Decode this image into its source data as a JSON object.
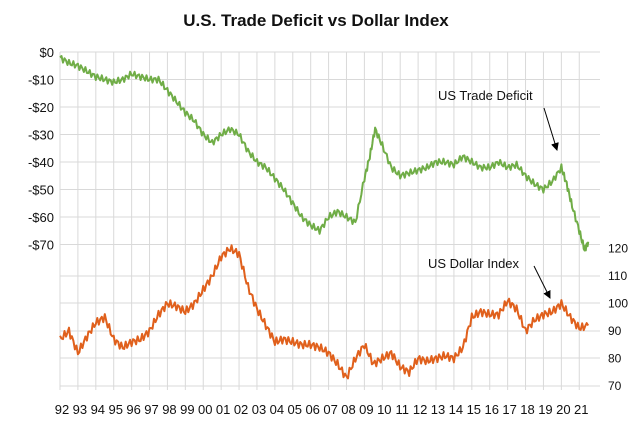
{
  "chart_data": {
    "type": "line",
    "title": "U.S. Trade Deficit vs Dollar Index",
    "grid": true,
    "x_tick_labels": [
      "92",
      "93",
      "94",
      "95",
      "96",
      "97",
      "98",
      "99",
      "00",
      "01",
      "02",
      "03",
      "04",
      "05",
      "06",
      "07",
      "08",
      "09",
      "10",
      "11",
      "12",
      "13",
      "14",
      "15",
      "16",
      "17",
      "18",
      "19",
      "20",
      "21"
    ],
    "x_range": [
      1992,
      2021.6
    ],
    "left_axis": {
      "ylim": [
        -80,
        0
      ],
      "tick_labels": [
        "$0",
        "-$10",
        "-$20",
        "-$30",
        "-$40",
        "-$50",
        "-$60",
        "-$70"
      ],
      "tick_values": [
        0,
        -10,
        -20,
        -30,
        -40,
        -50,
        -60,
        -70
      ]
    },
    "right_axis": {
      "ylim": [
        70,
        130
      ],
      "tick_labels": [
        "70",
        "80",
        "90",
        "100",
        "110",
        "120"
      ],
      "tick_values": [
        70,
        80,
        90,
        100,
        110,
        120
      ]
    },
    "annotations": [
      {
        "label": "US Trade Deficit",
        "series": 0,
        "x": 2019.7,
        "y": -42
      },
      {
        "label": "US Dollar Index",
        "series": 1,
        "x": 2019.6,
        "y": 98
      }
    ],
    "series": [
      {
        "name": "US Trade Deficit",
        "axis": "left",
        "color": "#70ad47",
        "x": [
          1992.0,
          1992.5,
          1993.0,
          1993.5,
          1994.0,
          1994.5,
          1995.0,
          1995.5,
          1996.0,
          1996.5,
          1997.0,
          1997.5,
          1998.0,
          1998.5,
          1999.0,
          1999.5,
          2000.0,
          2000.5,
          2001.0,
          2001.5,
          2002.0,
          2002.5,
          2003.0,
          2003.5,
          2004.0,
          2004.5,
          2005.0,
          2005.5,
          2006.0,
          2006.5,
          2007.0,
          2007.5,
          2008.0,
          2008.5,
          2009.0,
          2009.3,
          2009.6,
          2010.0,
          2010.5,
          2011.0,
          2011.5,
          2012.0,
          2012.5,
          2013.0,
          2013.5,
          2014.0,
          2014.5,
          2015.0,
          2015.5,
          2016.0,
          2016.5,
          2017.0,
          2017.5,
          2018.0,
          2018.5,
          2019.0,
          2019.5,
          2020.0,
          2020.3,
          2020.6,
          2021.0,
          2021.3,
          2021.5
        ],
        "y": [
          -2,
          -4,
          -5,
          -7,
          -9,
          -10,
          -11,
          -10,
          -8,
          -9,
          -10,
          -10,
          -14,
          -18,
          -22,
          -25,
          -30,
          -33,
          -30,
          -28,
          -30,
          -36,
          -40,
          -42,
          -46,
          -50,
          -55,
          -60,
          -63,
          -65,
          -60,
          -58,
          -60,
          -62,
          -46,
          -38,
          -28,
          -34,
          -42,
          -45,
          -44,
          -43,
          -42,
          -40,
          -40,
          -41,
          -38,
          -40,
          -42,
          -42,
          -40,
          -42,
          -41,
          -45,
          -48,
          -50,
          -47,
          -42,
          -48,
          -56,
          -65,
          -72,
          -69
        ]
      },
      {
        "name": "US Dollar Index",
        "axis": "right",
        "color": "#e0601c",
        "x": [
          1992.0,
          1992.5,
          1993.0,
          1993.5,
          1994.0,
          1994.5,
          1995.0,
          1995.5,
          1996.0,
          1996.5,
          1997.0,
          1997.5,
          1998.0,
          1998.5,
          1999.0,
          1999.5,
          2000.0,
          2000.5,
          2001.0,
          2001.5,
          2002.0,
          2002.5,
          2003.0,
          2003.5,
          2004.0,
          2004.5,
          2005.0,
          2005.5,
          2006.0,
          2006.5,
          2007.0,
          2007.5,
          2008.0,
          2008.5,
          2009.0,
          2009.5,
          2010.0,
          2010.5,
          2011.0,
          2011.5,
          2012.0,
          2012.5,
          2013.0,
          2013.5,
          2014.0,
          2014.5,
          2015.0,
          2015.5,
          2016.0,
          2016.5,
          2017.0,
          2017.5,
          2018.0,
          2018.5,
          2019.0,
          2019.5,
          2020.0,
          2020.5,
          2021.0,
          2021.5
        ],
        "y": [
          87,
          90,
          82,
          88,
          93,
          95,
          87,
          84,
          86,
          87,
          90,
          96,
          100,
          99,
          97,
          100,
          105,
          110,
          117,
          120,
          118,
          106,
          98,
          92,
          86,
          87,
          86,
          85,
          85,
          84,
          82,
          78,
          73,
          80,
          85,
          78,
          80,
          82,
          77,
          75,
          80,
          79,
          80,
          81,
          80,
          84,
          95,
          97,
          96,
          96,
          101,
          98,
          90,
          94,
          96,
          97,
          100,
          95,
          91,
          92
        ]
      }
    ]
  }
}
